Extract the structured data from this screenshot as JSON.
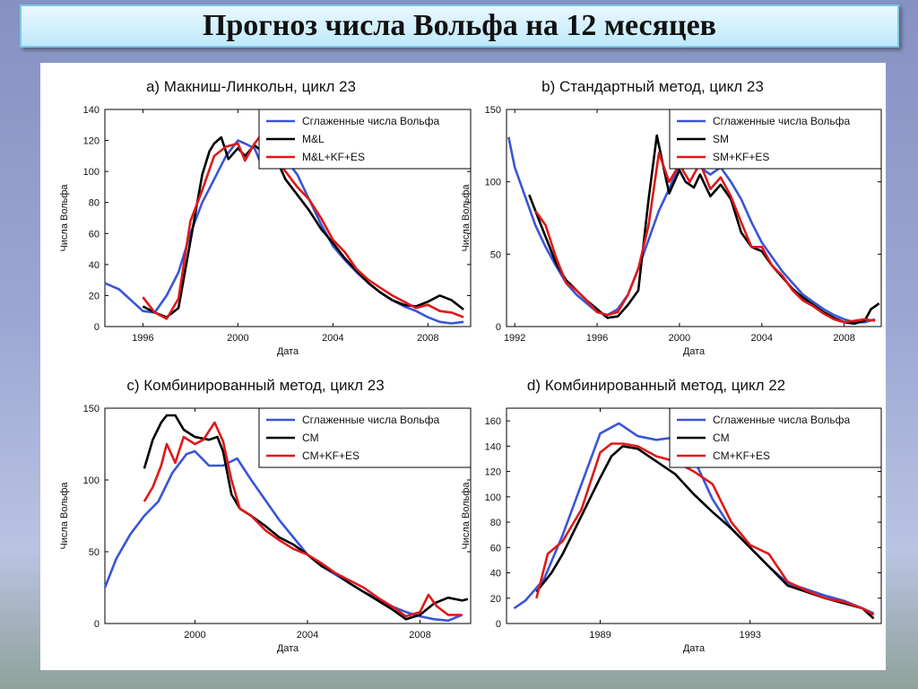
{
  "page": {
    "title": "Прогноз числа Вольфа на 12 месяцев"
  },
  "colors": {
    "blue": "#3a55d6",
    "black": "#000000",
    "red": "#e01818"
  },
  "chart_data": [
    {
      "id": "a",
      "type": "line",
      "title": "a) Макниш-Линкольн, цикл 23",
      "xlabel": "Дата",
      "ylabel": "Числа Вольфа",
      "xlim": [
        1994.4,
        2009.8
      ],
      "ylim": [
        0,
        140
      ],
      "xticks": [
        1996,
        2000,
        2004,
        2008
      ],
      "yticks": [
        0,
        20,
        40,
        60,
        80,
        100,
        120,
        140
      ],
      "legend_position": "top-right",
      "series": [
        {
          "name": "Сглаженные числа Вольфа",
          "color": "blue",
          "x": [
            1994.4,
            1995,
            1995.5,
            1996,
            1996.5,
            1997,
            1997.5,
            1998,
            1998.5,
            1999,
            1999.5,
            2000,
            2000.3,
            2000.7,
            2001,
            2001.5,
            2002,
            2002.5,
            2003,
            2003.5,
            2004,
            2004.5,
            2005,
            2005.5,
            2006,
            2006.5,
            2007,
            2007.5,
            2008,
            2008.5,
            2009,
            2009.5
          ],
          "y": [
            28,
            24,
            17,
            10,
            9,
            20,
            35,
            60,
            80,
            95,
            110,
            120,
            118,
            115,
            104,
            112,
            108,
            98,
            82,
            66,
            52,
            43,
            35,
            28,
            22,
            17,
            13,
            10,
            6,
            3,
            2,
            3
          ]
        },
        {
          "name": "M&L",
          "color": "black",
          "x": [
            1996,
            1996.5,
            1997,
            1997.5,
            1998,
            1998.5,
            1998.8,
            1999,
            1999.3,
            1999.6,
            2000,
            2000.3,
            2000.7,
            2001,
            2001.5,
            2002,
            2002.5,
            2003,
            2003.5,
            2004,
            2004.5,
            2005,
            2005.5,
            2006,
            2006.5,
            2007,
            2007.5,
            2008,
            2008.5,
            2009,
            2009.5
          ],
          "y": [
            13,
            9,
            6,
            12,
            55,
            98,
            113,
            118,
            122,
            108,
            115,
            110,
            117,
            113,
            112,
            95,
            85,
            75,
            63,
            54,
            44,
            36,
            28,
            22,
            17,
            14,
            13,
            16,
            20,
            17,
            11
          ]
        },
        {
          "name": "M&L+KF+ES",
          "color": "red",
          "x": [
            1996,
            1996.5,
            1997,
            1997.5,
            1998,
            1998.5,
            1999,
            1999.5,
            2000,
            2000.3,
            2000.7,
            2001,
            2001.2,
            2001.5,
            2002,
            2002.5,
            2003,
            2003.5,
            2004,
            2004.5,
            2005,
            2005.5,
            2006,
            2006.5,
            2007,
            2007.5,
            2008,
            2008.5,
            2009,
            2009.5
          ],
          "y": [
            19,
            9,
            5,
            18,
            68,
            88,
            110,
            116,
            118,
            107,
            118,
            124,
            117,
            110,
            100,
            90,
            82,
            70,
            56,
            48,
            37,
            30,
            25,
            20,
            16,
            12,
            14,
            10,
            9,
            6
          ]
        }
      ]
    },
    {
      "id": "b",
      "type": "line",
      "title": "b) Стандартный метод, цикл 23",
      "xlabel": "Дата",
      "ylabel": "Числа Вольфа",
      "xlim": [
        1991.6,
        2009.8
      ],
      "ylim": [
        0,
        150
      ],
      "xticks": [
        1992,
        1996,
        2000,
        2004,
        2008
      ],
      "yticks": [
        0,
        50,
        100,
        150
      ],
      "legend_position": "top-right",
      "series": [
        {
          "name": "Сглаженные числа Вольфа",
          "color": "blue",
          "x": [
            1991.7,
            1992,
            1992.5,
            1993,
            1993.5,
            1994,
            1994.5,
            1995,
            1995.5,
            1996,
            1996.5,
            1997,
            1997.5,
            1998,
            1998.5,
            1999,
            1999.5,
            2000,
            2000.5,
            2001,
            2001.5,
            2002,
            2002.5,
            2003,
            2003.5,
            2004,
            2004.5,
            2005,
            2005.5,
            2006,
            2006.5,
            2007,
            2007.5,
            2008,
            2008.5,
            2009,
            2009.5
          ],
          "y": [
            131,
            110,
            90,
            70,
            55,
            42,
            30,
            22,
            16,
            10,
            8,
            12,
            22,
            40,
            60,
            80,
            95,
            112,
            120,
            110,
            105,
            110,
            100,
            88,
            72,
            58,
            48,
            38,
            30,
            22,
            17,
            12,
            8,
            5,
            3,
            3,
            5
          ]
        },
        {
          "name": "SM",
          "color": "black",
          "x": [
            1992.7,
            1993,
            1993.5,
            1994,
            1994.5,
            1995,
            1995.5,
            1996,
            1996.5,
            1997,
            1997.5,
            1998,
            1998.5,
            1998.9,
            1999.2,
            1999.5,
            2000,
            2000.3,
            2000.7,
            2001,
            2001.5,
            2002,
            2002.5,
            2003,
            2003.5,
            2004,
            2004.5,
            2005,
            2005.5,
            2006,
            2006.5,
            2007,
            2007.5,
            2008,
            2008.5,
            2009,
            2009.3,
            2009.5,
            2009.7
          ],
          "y": [
            91,
            80,
            62,
            44,
            32,
            25,
            18,
            12,
            6,
            7,
            15,
            25,
            88,
            132,
            112,
            92,
            108,
            100,
            96,
            105,
            90,
            98,
            88,
            65,
            55,
            52,
            42,
            34,
            26,
            20,
            15,
            10,
            6,
            3,
            2,
            4,
            12,
            14,
            16
          ]
        },
        {
          "name": "SM+KF+ES",
          "color": "red",
          "x": [
            1993,
            1993.5,
            1994,
            1994.5,
            1995,
            1995.5,
            1996,
            1996.5,
            1997,
            1997.5,
            1998,
            1998.5,
            1999,
            1999.5,
            2000,
            2000.5,
            2001,
            2001.5,
            2002,
            2002.5,
            2003,
            2003.5,
            2004,
            2004.5,
            2005,
            2005.5,
            2006,
            2006.5,
            2007,
            2007.5,
            2008,
            2008.5,
            2009,
            2009.5
          ],
          "y": [
            80,
            70,
            48,
            30,
            25,
            18,
            10,
            8,
            10,
            22,
            40,
            70,
            120,
            100,
            112,
            100,
            113,
            95,
            103,
            90,
            72,
            55,
            55,
            42,
            35,
            25,
            18,
            14,
            9,
            5,
            3,
            4,
            5,
            4
          ]
        }
      ]
    },
    {
      "id": "c",
      "type": "line",
      "title": "c) Комбинированный метод, цикл 23",
      "xlabel": "Дата",
      "ylabel": "Числа Вольфа",
      "xlim": [
        1996.8,
        2009.8
      ],
      "ylim": [
        0,
        150
      ],
      "xticks": [
        2000,
        2004,
        2008
      ],
      "yticks": [
        0,
        50,
        100,
        150
      ],
      "legend_position": "top-right",
      "series": [
        {
          "name": "Сглаженные числа Вольфа",
          "color": "blue",
          "x": [
            1996.8,
            1997.2,
            1997.7,
            1998.2,
            1998.7,
            1999.2,
            1999.7,
            2000,
            2000.5,
            2001,
            2001.5,
            2002,
            2002.5,
            2003,
            2003.5,
            2004,
            2004.5,
            2005,
            2005.5,
            2006,
            2006.5,
            2007,
            2007.5,
            2008,
            2008.5,
            2009,
            2009.5
          ],
          "y": [
            25,
            45,
            62,
            75,
            85,
            105,
            118,
            120,
            110,
            110,
            115,
            100,
            86,
            72,
            60,
            48,
            40,
            34,
            28,
            22,
            17,
            12,
            8,
            5,
            3,
            2,
            6
          ]
        },
        {
          "name": "CM",
          "color": "black",
          "x": [
            1998.2,
            1998.5,
            1998.8,
            1999,
            1999.3,
            1999.6,
            2000,
            2000.5,
            2000.8,
            2001,
            2001.3,
            2001.6,
            2002,
            2002.5,
            2003,
            2003.5,
            2004,
            2004.5,
            2005,
            2005.5,
            2006,
            2006.5,
            2007,
            2007.5,
            2008,
            2008.5,
            2009,
            2009.5,
            2009.7
          ],
          "y": [
            108,
            128,
            140,
            145,
            145,
            135,
            130,
            128,
            130,
            120,
            90,
            80,
            75,
            68,
            60,
            55,
            48,
            40,
            35,
            28,
            22,
            16,
            10,
            3,
            6,
            14,
            18,
            16,
            17
          ]
        },
        {
          "name": "CM+KF+ES",
          "color": "red",
          "x": [
            1998.2,
            1998.5,
            1998.8,
            1999,
            1999.3,
            1999.6,
            2000,
            2000.3,
            2000.7,
            2001,
            2001.3,
            2001.6,
            2002,
            2002.5,
            2003,
            2003.5,
            2004,
            2004.5,
            2005,
            2005.5,
            2006,
            2006.5,
            2007,
            2007.5,
            2008,
            2008.3,
            2008.6,
            2009,
            2009.5
          ],
          "y": [
            85,
            95,
            110,
            125,
            112,
            130,
            125,
            128,
            140,
            127,
            100,
            80,
            75,
            65,
            58,
            52,
            48,
            42,
            35,
            30,
            25,
            18,
            12,
            5,
            8,
            20,
            12,
            6,
            6
          ]
        }
      ]
    },
    {
      "id": "d",
      "type": "line",
      "title": "d) Комбинированный метод, цикл 22",
      "xlabel": "Дата",
      "ylabel": "Числа Вольфа",
      "xlim": [
        1986.5,
        1996.5
      ],
      "ylim": [
        0,
        170
      ],
      "xticks": [
        1989,
        1993
      ],
      "yticks": [
        0,
        20,
        40,
        60,
        80,
        100,
        120,
        140,
        160
      ],
      "legend_position": "top-right",
      "series": [
        {
          "name": "Сглаженные числа Вольфа",
          "color": "blue",
          "x": [
            1986.7,
            1987,
            1987.5,
            1988,
            1988.5,
            1989,
            1989.5,
            1990,
            1990.5,
            1991,
            1991.5,
            1992,
            1992.5,
            1993,
            1993.5,
            1994,
            1994.5,
            1995,
            1995.5,
            1996,
            1996.3
          ],
          "y": [
            12,
            18,
            35,
            70,
            110,
            150,
            158,
            148,
            145,
            147,
            130,
            98,
            75,
            60,
            45,
            32,
            27,
            22,
            18,
            12,
            8
          ]
        },
        {
          "name": "CM",
          "color": "black",
          "x": [
            1987.3,
            1987.7,
            1988,
            1988.5,
            1989,
            1989.3,
            1989.6,
            1990,
            1990.5,
            1991,
            1991.5,
            1992,
            1992.5,
            1993,
            1993.5,
            1994,
            1994.5,
            1995,
            1995.5,
            1996,
            1996.3
          ],
          "y": [
            25,
            40,
            55,
            85,
            115,
            132,
            140,
            138,
            128,
            118,
            102,
            88,
            75,
            60,
            45,
            30,
            25,
            20,
            16,
            12,
            4
          ]
        },
        {
          "name": "CM+KF+ES",
          "color": "red",
          "x": [
            1987.3,
            1987.6,
            1988,
            1988.5,
            1989,
            1989.3,
            1989.6,
            1990,
            1990.5,
            1991,
            1991.5,
            1992,
            1992.5,
            1993,
            1993.5,
            1994,
            1994.5,
            1995,
            1995.5,
            1996,
            1996.3
          ],
          "y": [
            20,
            55,
            65,
            90,
            135,
            142,
            142,
            140,
            132,
            128,
            120,
            110,
            80,
            62,
            55,
            33,
            26,
            20,
            17,
            12,
            7
          ]
        }
      ]
    }
  ]
}
